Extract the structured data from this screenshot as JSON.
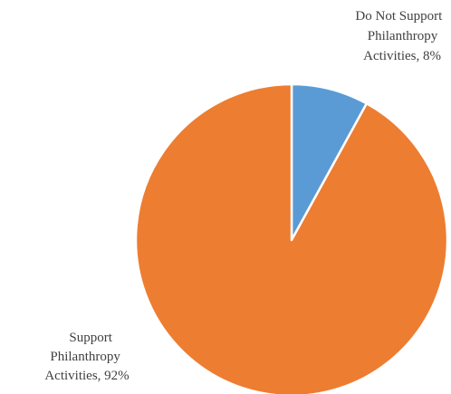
{
  "chart_data": {
    "type": "pie",
    "title": "",
    "legend": "none",
    "slices": [
      {
        "name": "Do Not Support Philanthropy Activities",
        "value": 8,
        "label_lines": [
          "Do Not Support",
          "Philanthropy",
          "Activities, 8%"
        ],
        "color": "#5B9BD5"
      },
      {
        "name": "Support Philanthropy Activities",
        "value": 92,
        "label_lines": [
          "Support",
          "Philanthropy",
          "Activities, 92%"
        ],
        "color": "#ED7D31"
      }
    ]
  }
}
